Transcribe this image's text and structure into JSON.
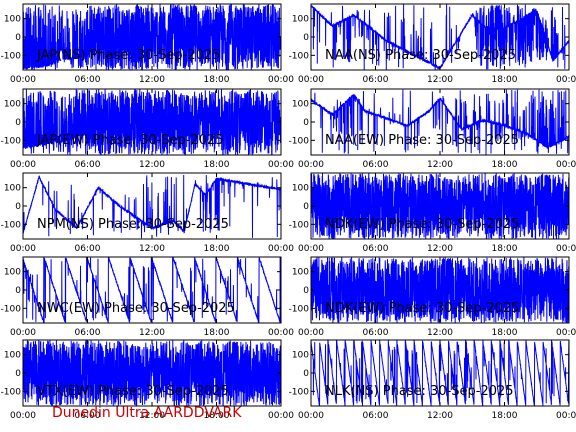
{
  "footer": "Dunedin Ultra AARDDVARK",
  "colors": {
    "trace": "#0000ff",
    "axes": "#000000",
    "background": "#ffffff",
    "footer": "#cc0000"
  },
  "chart_data": [
    {
      "type": "line",
      "title": "JAP(NS) Phase: 30-Sep-2025",
      "xticks": [
        "00:00",
        "06:00",
        "12:00",
        "18:00",
        "00:00"
      ],
      "yticks": [
        100,
        0,
        -100
      ],
      "xlim": [
        0,
        24
      ],
      "ylim": [
        -180,
        180
      ],
      "series": [
        {
          "style": "wrap",
          "x": [
            0,
            2,
            3,
            3.5,
            4,
            6,
            6.5,
            7,
            8,
            12,
            18,
            23.7,
            24
          ],
          "y": [
            -170,
            -160,
            -140,
            -60,
            -120,
            -100,
            -60,
            0,
            0,
            0,
            0,
            0,
            0
          ],
          "noise": [
            0.6,
            0.5,
            0.5,
            0.4,
            0.5,
            0.6,
            0.7,
            1,
            1,
            1,
            1,
            1,
            0
          ]
        }
      ]
    },
    {
      "type": "line",
      "title": "NAA(NS) Phase: 30-Sep-2025",
      "xticks": [
        "00:00",
        "06:00",
        "12:00",
        "18:00",
        "00:00"
      ],
      "yticks": [
        100,
        0,
        -100
      ],
      "xlim": [
        0,
        24
      ],
      "ylim": [
        -180,
        180
      ],
      "series": [
        {
          "style": "wrap",
          "x": [
            0,
            2,
            4,
            7,
            9,
            12,
            15,
            16,
            17.5,
            19,
            21,
            22.5,
            24
          ],
          "y": [
            170,
            60,
            120,
            -20,
            -80,
            -170,
            120,
            60,
            40,
            80,
            150,
            -130,
            -20
          ],
          "noise": [
            0.05,
            0.05,
            0.15,
            0.1,
            0.05,
            0.05,
            0.05,
            0.4,
            0.6,
            0.4,
            0.3,
            0.3,
            0.1
          ]
        }
      ]
    },
    {
      "type": "line",
      "title": "JAP(EW) Phase: 30-Sep-2025",
      "xticks": [
        "00:00",
        "06:00",
        "12:00",
        "18:00",
        "00:00"
      ],
      "yticks": [
        100,
        0,
        -100
      ],
      "xlim": [
        0,
        24
      ],
      "ylim": [
        -180,
        180
      ],
      "series": [
        {
          "style": "wrap",
          "x": [
            0,
            2,
            4,
            6,
            7,
            8,
            12,
            18,
            23.7,
            24
          ],
          "y": [
            -140,
            -120,
            -100,
            -60,
            0,
            0,
            0,
            0,
            0,
            20
          ],
          "noise": [
            0.5,
            0.5,
            0.5,
            0.6,
            1,
            1,
            1,
            1,
            1,
            0.1
          ]
        }
      ]
    },
    {
      "type": "line",
      "title": "NAA(EW) Phase: 30-Sep-2025",
      "xticks": [
        "00:00",
        "06:00",
        "12:00",
        "18:00",
        "00:00"
      ],
      "yticks": [
        100,
        0,
        -100
      ],
      "xlim": [
        0,
        24
      ],
      "ylim": [
        -180,
        180
      ],
      "series": [
        {
          "style": "wrap",
          "x": [
            0,
            2,
            4,
            5,
            7,
            9,
            11,
            12,
            14,
            16,
            18,
            20,
            22,
            24
          ],
          "y": [
            120,
            40,
            150,
            60,
            20,
            -20,
            60,
            130,
            -40,
            10,
            -20,
            -60,
            -140,
            -80
          ],
          "noise": [
            0.05,
            0.1,
            0.2,
            0.1,
            0.1,
            0.05,
            0.05,
            0.1,
            0.2,
            0.2,
            0.15,
            0.15,
            0.3,
            0.1
          ]
        }
      ]
    },
    {
      "type": "line",
      "title": "NPM(NS) Phase: 30-Sep-2025",
      "xticks": [
        "00:00",
        "06:00",
        "12:00",
        "18:00",
        "00:00"
      ],
      "yticks": [
        100,
        0,
        -100
      ],
      "xlim": [
        0,
        24
      ],
      "ylim": [
        -180,
        180
      ],
      "series": [
        {
          "style": "wrap",
          "x": [
            0,
            1.5,
            3,
            5,
            7,
            9,
            11,
            12,
            14,
            15,
            16,
            17,
            18,
            20,
            24
          ],
          "y": [
            -150,
            160,
            -20,
            -120,
            100,
            0,
            -80,
            -120,
            -80,
            -140,
            120,
            60,
            150,
            130,
            90
          ],
          "noise": [
            0.05,
            0.05,
            0.05,
            0.05,
            0.05,
            0.05,
            0.1,
            0.15,
            0.1,
            0.05,
            0.05,
            0.2,
            0.05,
            0.05,
            0.05
          ]
        }
      ]
    },
    {
      "type": "line",
      "title": "NDK(EW) Phase: 30-Sep-2025",
      "xticks": [
        "00:00",
        "06:00",
        "12:00",
        "18:00",
        "00:00"
      ],
      "yticks": [
        100,
        0,
        -100
      ],
      "xlim": [
        0,
        24
      ],
      "ylim": [
        -180,
        180
      ],
      "series": [
        {
          "style": "wrap",
          "x": [
            0,
            4,
            6,
            8,
            10,
            12,
            16,
            20,
            24
          ],
          "y": [
            0,
            0,
            0,
            0,
            0,
            0,
            0,
            0,
            0
          ],
          "noise": [
            1,
            1,
            1,
            0.9,
            0.9,
            1,
            1,
            1,
            1
          ]
        }
      ]
    },
    {
      "type": "line",
      "title": "NWC(EW) Phase: 30-Sep-2025",
      "xticks": [
        "00:00",
        "06:00",
        "12:00",
        "18:00",
        "00:00"
      ],
      "yticks": [
        100,
        0,
        -100
      ],
      "xlim": [
        0,
        24
      ],
      "ylim": [
        -180,
        180
      ],
      "series": [
        {
          "style": "saw",
          "x": [
            0,
            24
          ],
          "y": [
            0,
            0
          ],
          "slope": -180,
          "noise": [
            0.05,
            0.05
          ]
        }
      ]
    },
    {
      "type": "line",
      "title": "NDK(EW) Phase: 30-Sep-2025",
      "xticks": [
        "00:00",
        "06:00",
        "12:00",
        "18:00",
        "00:00"
      ],
      "yticks": [
        100,
        0,
        -100
      ],
      "xlim": [
        0,
        24
      ],
      "ylim": [
        -180,
        180
      ],
      "series": [
        {
          "style": "wrap",
          "x": [
            0,
            6,
            12,
            18,
            24
          ],
          "y": [
            0,
            0,
            0,
            0,
            0
          ],
          "noise": [
            1,
            1,
            1,
            1,
            1
          ]
        }
      ]
    },
    {
      "type": "line",
      "title": "VTX(EW) Phase: 30-Sep-2025",
      "xticks": [
        "00:00",
        "06:00",
        "12:00",
        "18:00",
        "00:00"
      ],
      "yticks": [
        100,
        0,
        -100
      ],
      "xlim": [
        0,
        24
      ],
      "ylim": [
        -180,
        180
      ],
      "series": [
        {
          "style": "wrap",
          "x": [
            0,
            24
          ],
          "y": [
            0,
            0
          ],
          "noise": [
            1,
            1
          ]
        }
      ]
    },
    {
      "type": "line",
      "title": "NLK(NS) Phase: 30-Sep-2025",
      "xticks": [
        "00:00",
        "06:00",
        "12:00",
        "18:00",
        "00:00"
      ],
      "yticks": [
        100,
        0,
        -100
      ],
      "xlim": [
        0,
        24
      ],
      "ylim": [
        -180,
        180
      ],
      "series": [
        {
          "style": "saw",
          "x": [
            0,
            24
          ],
          "y": [
            0,
            0
          ],
          "slope": -450,
          "noise": [
            0.05,
            0.05
          ]
        }
      ]
    }
  ]
}
